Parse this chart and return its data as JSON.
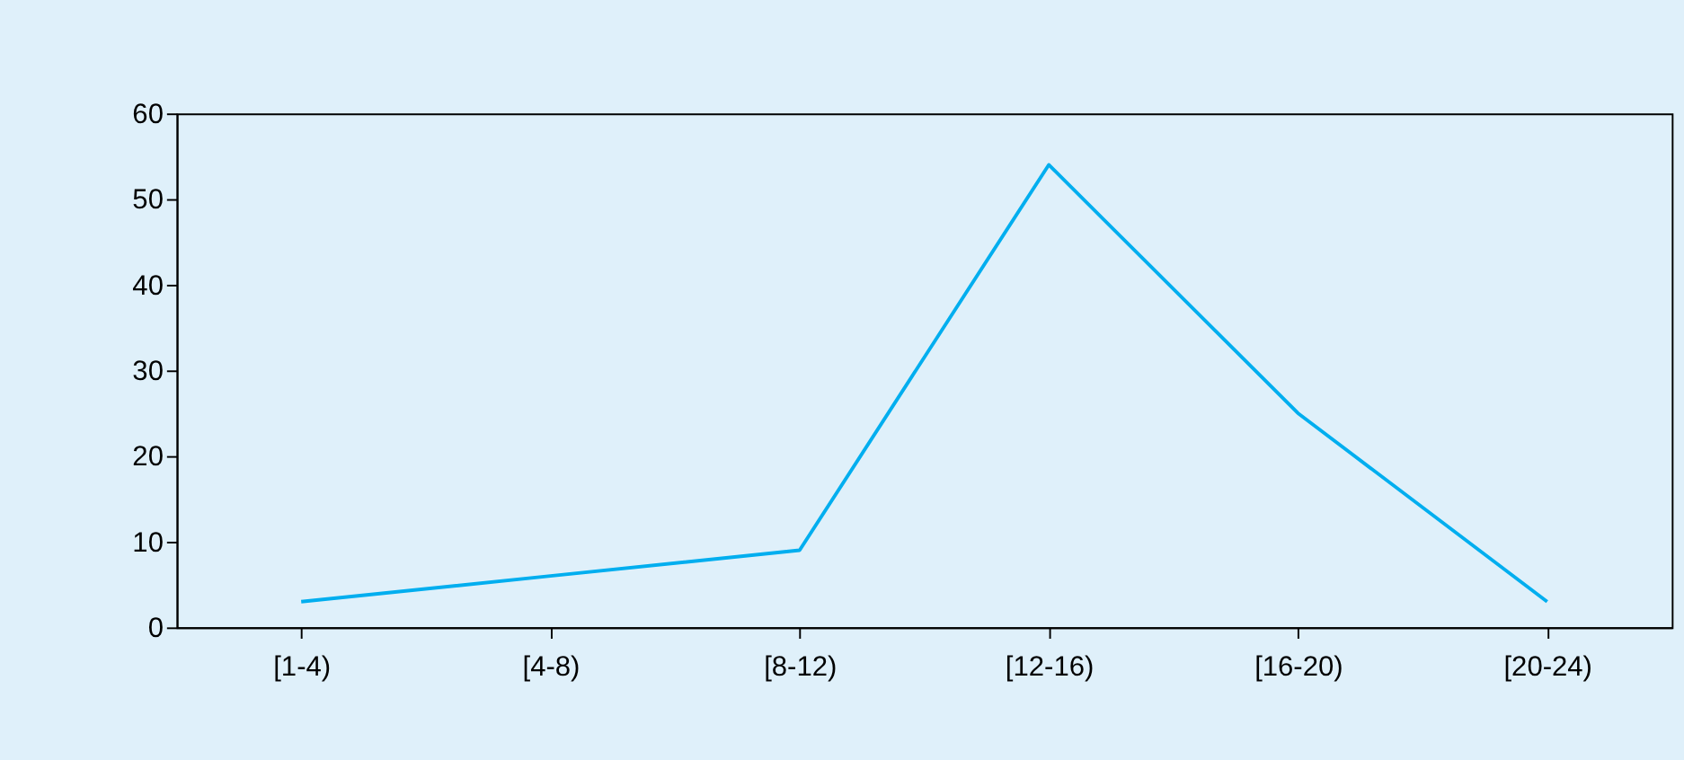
{
  "chart_data": {
    "type": "line",
    "categories": [
      "[1-4)",
      "[4-8)",
      "[8-12)",
      "[12-16)",
      "[16-20)",
      "[20-24)"
    ],
    "series": [
      {
        "color": "#00aeef",
        "values": [
          3,
          6,
          9,
          54,
          25,
          3
        ]
      }
    ],
    "ylim": [
      0,
      60
    ],
    "yticks": [
      0,
      10,
      20,
      30,
      40,
      50,
      60
    ],
    "grid": false,
    "marker": "none",
    "line_style": "solid"
  }
}
